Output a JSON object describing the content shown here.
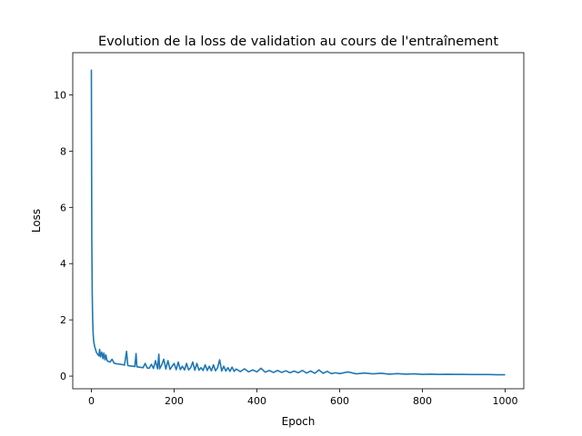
{
  "chart_data": {
    "type": "line",
    "title": "Evolution de la loss de validation au cours de l'entraînement",
    "xlabel": "Epoch",
    "ylabel": "Loss",
    "xlim": [
      -45,
      1045
    ],
    "ylim": [
      -0.45,
      11.5
    ],
    "xticks": [
      0,
      200,
      400,
      600,
      800,
      1000
    ],
    "yticks": [
      0,
      2,
      4,
      6,
      8,
      10
    ],
    "grid": false,
    "legend": "none",
    "series": [
      {
        "color": "#1f77b4",
        "x": [
          0,
          1,
          2,
          3,
          4,
          5,
          6,
          8,
          10,
          12,
          15,
          18,
          20,
          22,
          25,
          28,
          30,
          33,
          35,
          38,
          40,
          45,
          50,
          55,
          60,
          65,
          70,
          75,
          80,
          85,
          88,
          90,
          95,
          100,
          105,
          108,
          110,
          115,
          120,
          125,
          130,
          135,
          140,
          145,
          150,
          155,
          160,
          163,
          165,
          170,
          175,
          180,
          185,
          190,
          195,
          200,
          205,
          210,
          215,
          220,
          225,
          230,
          235,
          240,
          245,
          250,
          255,
          260,
          265,
          270,
          275,
          280,
          285,
          290,
          295,
          300,
          305,
          310,
          315,
          320,
          325,
          330,
          335,
          340,
          345,
          350,
          360,
          370,
          380,
          390,
          400,
          410,
          420,
          430,
          440,
          450,
          460,
          470,
          480,
          490,
          500,
          510,
          520,
          530,
          540,
          550,
          560,
          570,
          580,
          590,
          600,
          620,
          640,
          660,
          680,
          700,
          720,
          740,
          760,
          780,
          800,
          820,
          840,
          860,
          880,
          900,
          920,
          940,
          960,
          980,
          1000
        ],
        "y": [
          10.9,
          5.0,
          3.0,
          2.1,
          1.6,
          1.35,
          1.2,
          1.05,
          0.95,
          0.85,
          0.78,
          0.72,
          0.95,
          0.68,
          0.85,
          0.62,
          0.82,
          0.58,
          0.75,
          0.55,
          0.53,
          0.5,
          0.6,
          0.46,
          0.44,
          0.43,
          0.42,
          0.41,
          0.39,
          0.88,
          0.38,
          0.37,
          0.36,
          0.35,
          0.34,
          0.8,
          0.33,
          0.32,
          0.31,
          0.3,
          0.45,
          0.29,
          0.28,
          0.42,
          0.27,
          0.55,
          0.26,
          0.78,
          0.26,
          0.4,
          0.6,
          0.25,
          0.55,
          0.24,
          0.35,
          0.45,
          0.23,
          0.5,
          0.23,
          0.35,
          0.22,
          0.45,
          0.22,
          0.3,
          0.5,
          0.21,
          0.45,
          0.21,
          0.3,
          0.2,
          0.4,
          0.2,
          0.35,
          0.19,
          0.4,
          0.19,
          0.3,
          0.58,
          0.18,
          0.35,
          0.18,
          0.3,
          0.17,
          0.32,
          0.17,
          0.25,
          0.16,
          0.26,
          0.15,
          0.22,
          0.15,
          0.28,
          0.14,
          0.2,
          0.13,
          0.2,
          0.13,
          0.19,
          0.12,
          0.18,
          0.12,
          0.2,
          0.11,
          0.18,
          0.1,
          0.22,
          0.1,
          0.17,
          0.09,
          0.12,
          0.09,
          0.15,
          0.08,
          0.11,
          0.08,
          0.1,
          0.07,
          0.09,
          0.07,
          0.08,
          0.06,
          0.07,
          0.06,
          0.065,
          0.06,
          0.06,
          0.055,
          0.055,
          0.055,
          0.05,
          0.05
        ]
      }
    ]
  }
}
